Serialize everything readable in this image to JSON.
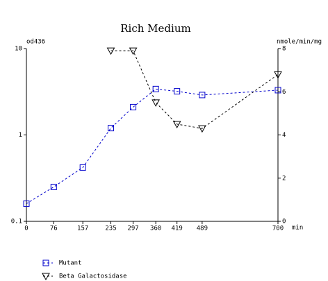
{
  "chart_data": {
    "type": "line",
    "title": "Rich Medium",
    "xlabel": "min",
    "ylabel": "od436",
    "y2label": "nmole/min/mg",
    "x": [
      0,
      76,
      157,
      235,
      297,
      360,
      419,
      489,
      700
    ],
    "xlim": [
      0,
      700
    ],
    "xticks": [
      0,
      76,
      157,
      235,
      297,
      360,
      419,
      489,
      700
    ],
    "ylim": [
      0.1,
      10
    ],
    "yticks": [
      0.1,
      1,
      10
    ],
    "yscale": "log",
    "y2lim": [
      0,
      8
    ],
    "y2ticks": [
      0,
      2,
      4,
      6,
      8
    ],
    "series": [
      {
        "name": "Mutant",
        "color": "#0000cc",
        "marker": "square",
        "values": [
          0.16,
          0.25,
          0.42,
          1.2,
          2.1,
          3.4,
          3.2,
          2.9,
          3.3
        ]
      },
      {
        "name": "Beta Galactosidase",
        "color": "#000000",
        "marker": "triangle-down",
        "axis": "y2",
        "values": [
          null,
          null,
          null,
          7.9,
          7.9,
          5.5,
          4.5,
          4.3,
          6.8
        ]
      }
    ]
  }
}
